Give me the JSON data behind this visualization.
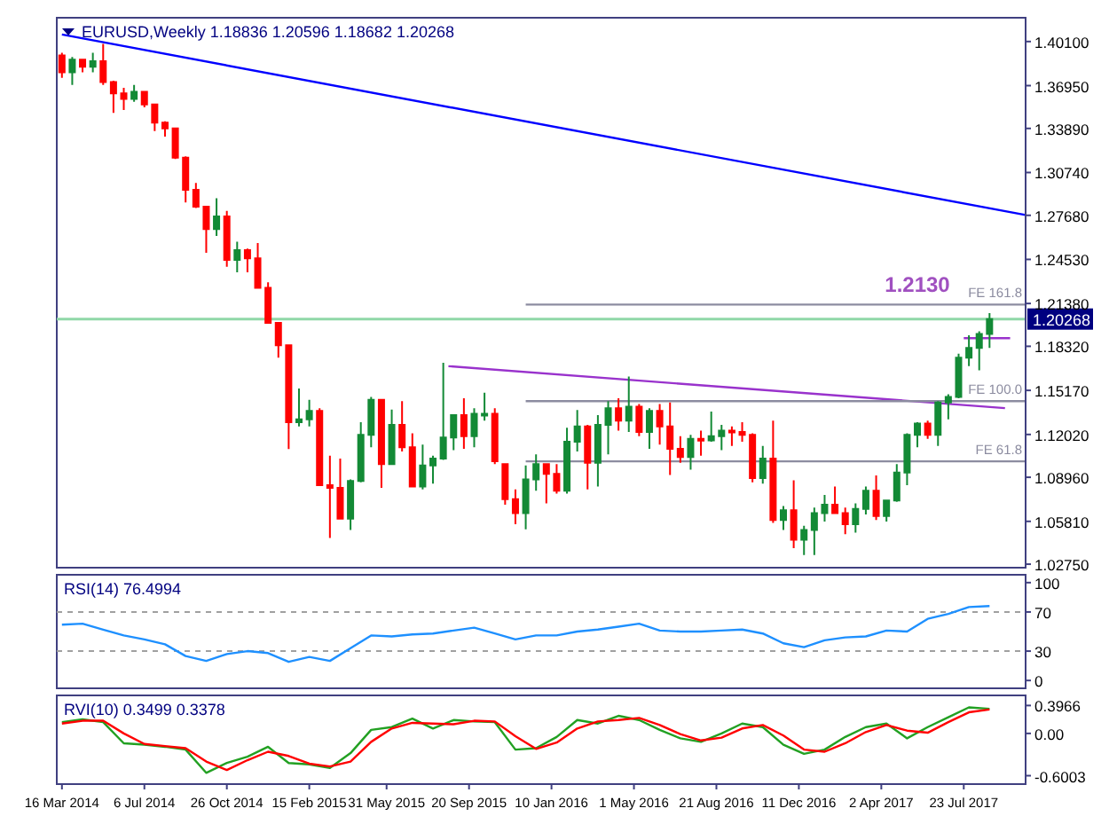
{
  "chart_data": [
    {
      "type": "candlestick",
      "title": "EURUSD,Weekly  1.18836 1.20596 1.18682 1.20268",
      "xlim": [
        "2014-03-09",
        "2017-10-15"
      ],
      "ylim": [
        1.025,
        1.418
      ],
      "tick_labels": "y",
      "yticks": [
        {
          "value": 1.401,
          "label": "1.40100"
        },
        {
          "value": 1.3695,
          "label": "1.36950"
        },
        {
          "value": 1.3389,
          "label": "1.33890"
        },
        {
          "value": 1.3074,
          "label": "1.30740"
        },
        {
          "value": 1.2768,
          "label": "1.27680"
        },
        {
          "value": 1.2453,
          "label": "1.24530"
        },
        {
          "value": 1.2138,
          "label": "1.21380"
        },
        {
          "value": 1.1832,
          "label": "1.18320"
        },
        {
          "value": 1.1517,
          "label": "1.15170"
        },
        {
          "value": 1.1202,
          "label": "1.12020"
        },
        {
          "value": 1.0896,
          "label": "1.08960"
        },
        {
          "value": 1.0581,
          "label": "1.05810"
        },
        {
          "value": 1.0275,
          "label": "1.02750"
        }
      ],
      "x": [
        "2014-03-16",
        "2014-03-30",
        "2014-04-13",
        "2014-04-27",
        "2014-05-11",
        "2014-05-25",
        "2014-06-08",
        "2014-06-22",
        "2014-07-06",
        "2014-07-20",
        "2014-08-03",
        "2014-08-17",
        "2014-08-31",
        "2014-09-14",
        "2014-09-28",
        "2014-10-12",
        "2014-10-26",
        "2014-11-09",
        "2014-11-23",
        "2014-12-07",
        "2014-12-21",
        "2015-01-04",
        "2015-01-18",
        "2015-02-01",
        "2015-02-15",
        "2015-03-01",
        "2015-03-15",
        "2015-03-29",
        "2015-04-12",
        "2015-04-26",
        "2015-05-10",
        "2015-05-24",
        "2015-06-07",
        "2015-06-21",
        "2015-07-05",
        "2015-07-19",
        "2015-08-02",
        "2015-08-16",
        "2015-08-30",
        "2015-09-13",
        "2015-09-27",
        "2015-10-11",
        "2015-10-25",
        "2015-11-08",
        "2015-11-22",
        "2015-12-06",
        "2015-12-20",
        "2016-01-03",
        "2016-01-17",
        "2016-01-31",
        "2016-02-14",
        "2016-02-28",
        "2016-03-13",
        "2016-03-27",
        "2016-04-10",
        "2016-04-24",
        "2016-05-08",
        "2016-05-22",
        "2016-06-05",
        "2016-06-19",
        "2016-07-03",
        "2016-07-17",
        "2016-07-31",
        "2016-08-14",
        "2016-08-28",
        "2016-09-11",
        "2016-09-25",
        "2016-10-09",
        "2016-10-23",
        "2016-11-06",
        "2016-11-20",
        "2016-12-04",
        "2016-12-18",
        "2017-01-01",
        "2017-01-15",
        "2017-01-29",
        "2017-02-12",
        "2017-02-26",
        "2017-03-12",
        "2017-03-26",
        "2017-04-09",
        "2017-04-23",
        "2017-05-07",
        "2017-05-21",
        "2017-06-04",
        "2017-06-18",
        "2017-07-02",
        "2017-07-16",
        "2017-07-30",
        "2017-08-13",
        "2017-08-27"
      ],
      "ohlc": [
        [
          1.391,
          1.393,
          1.375,
          1.379
        ],
        [
          1.379,
          1.39,
          1.37,
          1.388
        ],
        [
          1.388,
          1.388,
          1.379,
          1.383
        ],
        [
          1.383,
          1.393,
          1.379,
          1.387
        ],
        [
          1.387,
          1.3993,
          1.37,
          1.372
        ],
        [
          1.372,
          1.373,
          1.35,
          1.364
        ],
        [
          1.364,
          1.368,
          1.352,
          1.36
        ],
        [
          1.36,
          1.37,
          1.358,
          1.365
        ],
        [
          1.365,
          1.365,
          1.354,
          1.356
        ],
        [
          1.356,
          1.356,
          1.337,
          1.343
        ],
        [
          1.343,
          1.344,
          1.333,
          1.339
        ],
        [
          1.339,
          1.339,
          1.317,
          1.318
        ],
        [
          1.318,
          1.319,
          1.286,
          1.295
        ],
        [
          1.295,
          1.3,
          1.282,
          1.283
        ],
        [
          1.283,
          1.283,
          1.25,
          1.267
        ],
        [
          1.267,
          1.289,
          1.262,
          1.276
        ],
        [
          1.276,
          1.28,
          1.24,
          1.245
        ],
        [
          1.245,
          1.258,
          1.236,
          1.252
        ],
        [
          1.252,
          1.253,
          1.236,
          1.246
        ],
        [
          1.246,
          1.257,
          1.225,
          1.225
        ],
        [
          1.225,
          1.229,
          1.1998,
          1.2
        ],
        [
          1.2,
          1.2,
          1.175,
          1.184
        ],
        [
          1.184,
          1.184,
          1.1098,
          1.129
        ],
        [
          1.129,
          1.153,
          1.126,
          1.131
        ],
        [
          1.131,
          1.145,
          1.126,
          1.137
        ],
        [
          1.137,
          1.139,
          1.084,
          1.084
        ],
        [
          1.084,
          1.105,
          1.0462,
          1.082
        ],
        [
          1.082,
          1.103,
          1.06,
          1.06
        ],
        [
          1.06,
          1.088,
          1.052,
          1.087
        ],
        [
          1.087,
          1.129,
          1.086,
          1.12
        ],
        [
          1.12,
          1.147,
          1.111,
          1.145
        ],
        [
          1.145,
          1.145,
          1.082,
          1.099
        ],
        [
          1.099,
          1.138,
          1.099,
          1.127
        ],
        [
          1.127,
          1.144,
          1.108,
          1.111
        ],
        [
          1.111,
          1.121,
          1.083,
          1.083
        ],
        [
          1.083,
          1.113,
          1.081,
          1.098
        ],
        [
          1.098,
          1.105,
          1.085,
          1.103
        ],
        [
          1.103,
          1.1714,
          1.102,
          1.118
        ],
        [
          1.118,
          1.134,
          1.109,
          1.134
        ],
        [
          1.134,
          1.146,
          1.11,
          1.119
        ],
        [
          1.119,
          1.139,
          1.111,
          1.135
        ],
        [
          1.135,
          1.15,
          1.13,
          1.135
        ],
        [
          1.135,
          1.139,
          1.099,
          1.101
        ],
        [
          1.099,
          1.099,
          1.07,
          1.074
        ],
        [
          1.074,
          1.081,
          1.056,
          1.064
        ],
        [
          1.064,
          1.098,
          1.0524,
          1.088
        ],
        [
          1.088,
          1.106,
          1.08,
          1.099
        ],
        [
          1.099,
          1.099,
          1.071,
          1.092
        ],
        [
          1.092,
          1.099,
          1.078,
          1.08
        ],
        [
          1.08,
          1.125,
          1.078,
          1.115
        ],
        [
          1.115,
          1.1376,
          1.108,
          1.126
        ],
        [
          1.126,
          1.127,
          1.081,
          1.1
        ],
        [
          1.1,
          1.134,
          1.083,
          1.127
        ],
        [
          1.127,
          1.144,
          1.106,
          1.139
        ],
        [
          1.139,
          1.146,
          1.123,
          1.13
        ],
        [
          1.13,
          1.1616,
          1.122,
          1.14
        ],
        [
          1.14,
          1.142,
          1.119,
          1.122
        ],
        [
          1.122,
          1.139,
          1.11,
          1.137
        ],
        [
          1.137,
          1.142,
          1.113,
          1.126
        ],
        [
          1.126,
          1.143,
          1.0912,
          1.11
        ],
        [
          1.11,
          1.119,
          1.1,
          1.104
        ],
        [
          1.104,
          1.12,
          1.095,
          1.117
        ],
        [
          1.117,
          1.123,
          1.105,
          1.116
        ],
        [
          1.116,
          1.1366,
          1.115,
          1.119
        ],
        [
          1.119,
          1.127,
          1.109,
          1.123
        ],
        [
          1.123,
          1.126,
          1.112,
          1.122
        ],
        [
          1.122,
          1.129,
          1.115,
          1.12
        ],
        [
          1.12,
          1.121,
          1.086,
          1.089
        ],
        [
          1.089,
          1.112,
          1.085,
          1.103
        ],
        [
          1.103,
          1.13,
          1.057,
          1.059
        ],
        [
          1.059,
          1.069,
          1.052,
          1.066
        ],
        [
          1.066,
          1.0875,
          1.039,
          1.045
        ],
        [
          1.045,
          1.055,
          1.0341,
          1.052
        ],
        [
          1.052,
          1.068,
          1.034,
          1.064
        ],
        [
          1.064,
          1.077,
          1.058,
          1.07
        ],
        [
          1.07,
          1.083,
          1.064,
          1.064
        ],
        [
          1.064,
          1.068,
          1.049,
          1.056
        ],
        [
          1.056,
          1.071,
          1.05,
          1.067
        ],
        [
          1.067,
          1.083,
          1.063,
          1.08
        ],
        [
          1.08,
          1.091,
          1.059,
          1.062
        ],
        [
          1.062,
          1.073,
          1.058,
          1.073
        ],
        [
          1.073,
          1.099,
          1.072,
          1.093
        ],
        [
          1.093,
          1.121,
          1.084,
          1.12
        ],
        [
          1.12,
          1.129,
          1.111,
          1.128
        ],
        [
          1.128,
          1.13,
          1.117,
          1.12
        ],
        [
          1.12,
          1.144,
          1.112,
          1.143
        ],
        [
          1.143,
          1.149,
          1.131,
          1.147
        ],
        [
          1.147,
          1.178,
          1.146,
          1.175
        ],
        [
          1.175,
          1.191,
          1.169,
          1.182
        ],
        [
          1.182,
          1.194,
          1.166,
          1.192
        ],
        [
          1.192,
          1.207,
          1.182,
          1.2027
        ]
      ],
      "series": [
        {
          "type": "line",
          "color": "#0000ff",
          "x": [
            "2014-03-16",
            "2017-10-15"
          ],
          "values": [
            1.406,
            1.277
          ]
        },
        {
          "type": "line",
          "color": "#9932cc",
          "x": [
            "2015-08-23",
            "2017-09-17"
          ],
          "values": [
            1.169,
            1.139
          ]
        },
        {
          "type": "line",
          "color": "#9932cc",
          "x": [
            "2017-07-23",
            "2017-09-24"
          ],
          "values": [
            1.189,
            1.189
          ]
        },
        {
          "type": "line",
          "name": "FE 161.8",
          "color": "#8c8ca0",
          "x": [
            "2015-12-06",
            "2017-10-15"
          ],
          "values": [
            1.213,
            1.213
          ]
        },
        {
          "type": "line",
          "name": "FE 100.0",
          "color": "#8c8ca0",
          "x": [
            "2015-12-06",
            "2017-10-15"
          ],
          "values": [
            1.144,
            1.144
          ]
        },
        {
          "type": "line",
          "name": "FE 61.8",
          "color": "#8c8ca0",
          "x": [
            "2015-12-06",
            "2017-10-15"
          ],
          "values": [
            1.101,
            1.101
          ]
        }
      ],
      "ref_lines": [
        {
          "axis": "y",
          "value": 1.20268,
          "label": "1.20268",
          "color": "#90d8a8"
        }
      ],
      "annotations": [
        {
          "text": "1.2130",
          "x": "2017-05-21",
          "y": 1.213
        }
      ]
    },
    {
      "type": "line",
      "title": "RSI(14) 76.4994",
      "xlim": [
        "2014-03-09",
        "2017-10-15"
      ],
      "ylim": [
        -8,
        108
      ],
      "tick_labels": "y",
      "yticks": [
        100,
        70,
        30,
        0
      ],
      "x": [
        "2014-03-16",
        "2014-04-13",
        "2014-05-11",
        "2014-06-08",
        "2014-07-06",
        "2014-08-03",
        "2014-08-31",
        "2014-09-28",
        "2014-10-26",
        "2014-11-23",
        "2014-12-21",
        "2015-01-18",
        "2015-02-15",
        "2015-03-15",
        "2015-04-12",
        "2015-05-10",
        "2015-06-07",
        "2015-07-05",
        "2015-08-02",
        "2015-08-30",
        "2015-09-27",
        "2015-10-25",
        "2015-11-22",
        "2015-12-20",
        "2016-01-17",
        "2016-02-14",
        "2016-03-13",
        "2016-04-10",
        "2016-05-08",
        "2016-06-05",
        "2016-07-03",
        "2016-07-31",
        "2016-08-28",
        "2016-09-25",
        "2016-10-23",
        "2016-11-20",
        "2016-12-18",
        "2017-01-15",
        "2017-02-12",
        "2017-03-12",
        "2017-04-09",
        "2017-05-07",
        "2017-06-04",
        "2017-07-02",
        "2017-07-30",
        "2017-08-27"
      ],
      "series": [
        {
          "color": "#1e90ff",
          "values": [
            57,
            58,
            52,
            46,
            42,
            37,
            25,
            20,
            27,
            30,
            28,
            19,
            24,
            20,
            33,
            46,
            45,
            47,
            48,
            51,
            54,
            48,
            42,
            46,
            46,
            50,
            52,
            55,
            58,
            51,
            50,
            50,
            51,
            52,
            48,
            38,
            34,
            41,
            44,
            45,
            51,
            50,
            63,
            68,
            75,
            76
          ]
        }
      ],
      "ref_lines": [
        {
          "axis": "y",
          "value": 70,
          "color": "#a0a0a0",
          "line_style": "dashed"
        },
        {
          "axis": "y",
          "value": 30,
          "color": "#a0a0a0",
          "line_style": "dashed"
        }
      ]
    },
    {
      "type": "line",
      "title": "RVI(10) 0.3499 0.3378",
      "xlim": [
        "2014-03-09",
        "2017-10-15"
      ],
      "ylim": [
        -0.72,
        0.54
      ],
      "yticks": [
        0.3966,
        {
          "value": 0,
          "label": "0.00"
        },
        -0.6003
      ],
      "xticks": [
        {
          "value": "2014-03-16",
          "label": "16 Mar 2014"
        },
        {
          "value": "2014-07-06",
          "label": "6 Jul 2014"
        },
        {
          "value": "2014-10-26",
          "label": "26 Oct 2014"
        },
        {
          "value": "2015-02-15",
          "label": "15 Feb 2015"
        },
        {
          "value": "2015-05-31",
          "label": "31 May 2015"
        },
        {
          "value": "2015-09-20",
          "label": "20 Sep 2015"
        },
        {
          "value": "2016-01-10",
          "label": "10 Jan 2016"
        },
        {
          "value": "2016-05-01",
          "label": "1 May 2016"
        },
        {
          "value": "2016-08-21",
          "label": "21 Aug 2016"
        },
        {
          "value": "2016-12-11",
          "label": "11 Dec 2016"
        },
        {
          "value": "2017-04-02",
          "label": "2 Apr 2017"
        },
        {
          "value": "2017-07-23",
          "label": "23 Jul 2017"
        }
      ],
      "x": [
        "2014-03-16",
        "2014-04-13",
        "2014-05-11",
        "2014-06-08",
        "2014-07-06",
        "2014-08-03",
        "2014-08-31",
        "2014-09-28",
        "2014-10-26",
        "2014-11-23",
        "2014-12-21",
        "2015-01-18",
        "2015-02-15",
        "2015-03-15",
        "2015-04-12",
        "2015-05-10",
        "2015-06-07",
        "2015-07-05",
        "2015-08-02",
        "2015-08-30",
        "2015-09-27",
        "2015-10-25",
        "2015-11-22",
        "2015-12-20",
        "2016-01-17",
        "2016-02-14",
        "2016-03-13",
        "2016-04-10",
        "2016-05-08",
        "2016-06-05",
        "2016-07-03",
        "2016-07-31",
        "2016-08-28",
        "2016-09-25",
        "2016-10-23",
        "2016-11-20",
        "2016-12-18",
        "2017-01-15",
        "2017-02-12",
        "2017-03-12",
        "2017-04-09",
        "2017-05-07",
        "2017-06-04",
        "2017-07-02",
        "2017-07-30",
        "2017-08-27"
      ],
      "series": [
        {
          "color": "#22a022",
          "values": [
            0.16,
            0.2,
            0.16,
            -0.14,
            -0.16,
            -0.19,
            -0.23,
            -0.56,
            -0.42,
            -0.33,
            -0.19,
            -0.42,
            -0.44,
            -0.49,
            -0.28,
            0.05,
            0.09,
            0.21,
            0.07,
            0.19,
            0.17,
            0.16,
            -0.23,
            -0.21,
            -0.05,
            0.19,
            0.14,
            0.25,
            0.19,
            0.05,
            -0.07,
            -0.12,
            0,
            0.14,
            0.09,
            -0.16,
            -0.29,
            -0.23,
            -0.05,
            0.09,
            0.14,
            -0.07,
            0.09,
            0.23,
            0.37,
            0.35
          ]
        },
        {
          "color": "#ff0000",
          "values": [
            0.14,
            0.18,
            0.18,
            0,
            -0.15,
            -0.18,
            -0.21,
            -0.4,
            -0.52,
            -0.38,
            -0.26,
            -0.32,
            -0.43,
            -0.47,
            -0.4,
            -0.12,
            0.07,
            0.15,
            0.14,
            0.13,
            0.18,
            0.17,
            -0.04,
            -0.22,
            -0.13,
            0.07,
            0.17,
            0.19,
            0.22,
            0.12,
            -0.01,
            -0.1,
            -0.06,
            0.07,
            0.12,
            -0.03,
            -0.23,
            -0.26,
            -0.14,
            0.02,
            0.12,
            0.04,
            0.01,
            0.16,
            0.3,
            0.34
          ]
        }
      ]
    }
  ]
}
